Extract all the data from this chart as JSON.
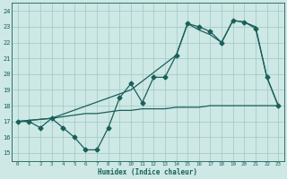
{
  "bg_color": "#cde8e5",
  "grid_color": "#a0c8c5",
  "line_color": "#1a5f5a",
  "xlabel": "Humidex (Indice chaleur)",
  "xlim": [
    -0.5,
    23.5
  ],
  "ylim": [
    14.5,
    24.5
  ],
  "yticks": [
    15,
    16,
    17,
    18,
    19,
    20,
    21,
    22,
    23,
    24
  ],
  "xticks": [
    0,
    1,
    2,
    3,
    4,
    5,
    6,
    7,
    8,
    9,
    10,
    11,
    12,
    13,
    14,
    15,
    16,
    17,
    18,
    19,
    20,
    21,
    22,
    23
  ],
  "series1_x": [
    0,
    1,
    2,
    3,
    4,
    5,
    6,
    7,
    8,
    9,
    10,
    11,
    12,
    13,
    14,
    15,
    16,
    17,
    18,
    19,
    20,
    21,
    22,
    23
  ],
  "series1_y": [
    17.0,
    17.0,
    16.6,
    17.2,
    16.6,
    16.0,
    15.2,
    15.2,
    16.6,
    18.5,
    19.4,
    18.2,
    19.8,
    19.8,
    21.2,
    23.2,
    23.0,
    22.7,
    22.0,
    23.4,
    23.3,
    22.9,
    19.8,
    18.0
  ],
  "series2_x": [
    0,
    3,
    4,
    5,
    6,
    7,
    8,
    9,
    10,
    11,
    12,
    13,
    14,
    15,
    16,
    17,
    18,
    19,
    20,
    21,
    22,
    23
  ],
  "series2_y": [
    17.0,
    17.2,
    17.3,
    17.4,
    17.5,
    17.5,
    17.6,
    17.7,
    17.7,
    17.8,
    17.8,
    17.8,
    17.9,
    17.9,
    17.9,
    18.0,
    18.0,
    18.0,
    18.0,
    18.0,
    18.0,
    18.0
  ],
  "series3_x": [
    0,
    3,
    10,
    14,
    15,
    16,
    17,
    18,
    19,
    20,
    21,
    22,
    23
  ],
  "series3_y": [
    17.0,
    17.2,
    19.0,
    21.2,
    23.2,
    22.8,
    22.5,
    22.0,
    23.4,
    23.3,
    23.0,
    19.8,
    18.0
  ],
  "marker_size": 2.5,
  "linewidth": 0.9
}
